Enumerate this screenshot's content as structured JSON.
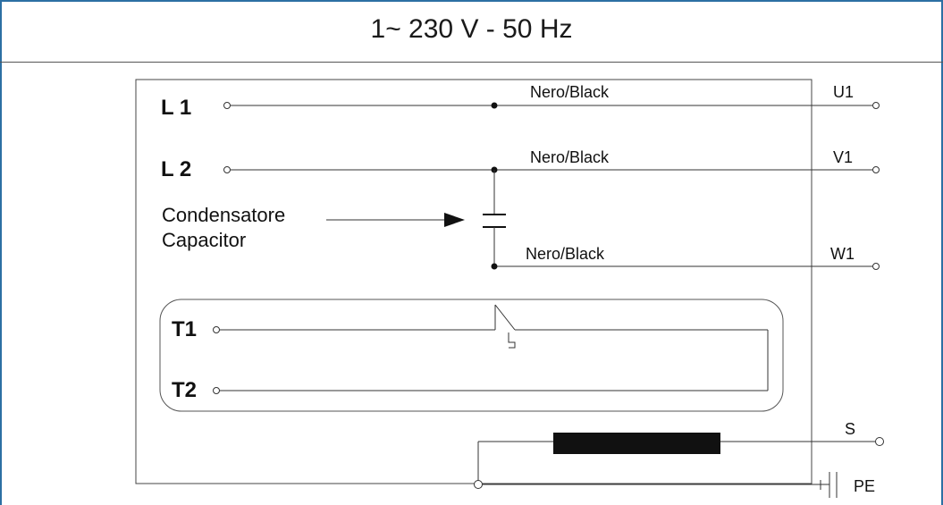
{
  "title": "1~ 230 V - 50 Hz",
  "inputs": {
    "l1": "L 1",
    "l2": "L 2"
  },
  "wires": {
    "w1": "Nero/Black",
    "w2": "Nero/Black",
    "w3": "Nero/Black"
  },
  "outputs": {
    "u1": "U1",
    "v1": "V1",
    "w1": "W1",
    "s": "S",
    "pe": "PE"
  },
  "capacitor": {
    "line1": "Condensatore",
    "line2": "Capacitor"
  },
  "thermal": {
    "t1": "T1",
    "t2": "T2"
  },
  "colors": {
    "frame": "#2c6fa3",
    "line": "#333333",
    "fill": "#111111"
  }
}
